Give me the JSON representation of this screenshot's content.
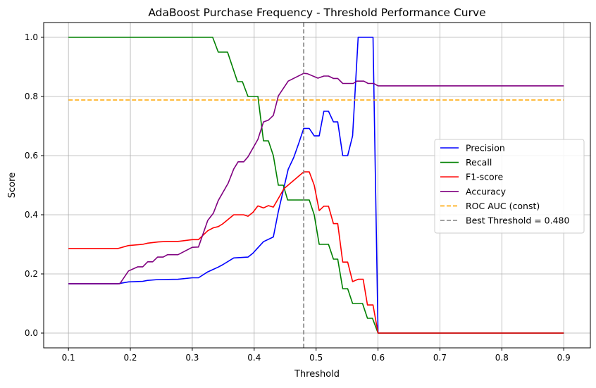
{
  "chart_data": {
    "type": "line",
    "title": "AdaBoost Purchase Frequency - Threshold Performance Curve",
    "xlabel": "Threshold",
    "ylabel": "Score",
    "xlim": [
      0.06,
      0.943
    ],
    "ylim": [
      -0.05,
      1.05
    ],
    "xticks": [
      0.1,
      0.2,
      0.3,
      0.4,
      0.5,
      0.6,
      0.7,
      0.8,
      0.9
    ],
    "xtick_labels": [
      "0.1",
      "0.2",
      "0.3",
      "0.4",
      "0.5",
      "0.6",
      "0.7",
      "0.8",
      "0.9"
    ],
    "yticks": [
      0,
      0.2,
      0.4,
      0.6,
      0.8,
      1.0
    ],
    "ytick_labels": [
      "0.0",
      "0.2",
      "0.4",
      "0.6",
      "0.8",
      "1.0"
    ],
    "grid": true,
    "legend_position": "center-right",
    "series": [
      {
        "name": "Precision",
        "color": "#0000ff",
        "style": "solid",
        "x": [
          0.1,
          0.18,
          0.197,
          0.22,
          0.228,
          0.245,
          0.277,
          0.3,
          0.31,
          0.325,
          0.342,
          0.349,
          0.367,
          0.39,
          0.398,
          0.415,
          0.431,
          0.439,
          0.455,
          0.464,
          0.472,
          0.48,
          0.489,
          0.497,
          0.505,
          0.5125,
          0.52,
          0.528,
          0.535,
          0.543,
          0.551,
          0.559,
          0.568,
          0.592,
          0.6,
          0.9
        ],
        "y": [
          0.167,
          0.167,
          0.173,
          0.175,
          0.178,
          0.181,
          0.182,
          0.187,
          0.187,
          0.207,
          0.223,
          0.231,
          0.254,
          0.257,
          0.27,
          0.309,
          0.325,
          0.411,
          0.554,
          0.594,
          0.642,
          0.692,
          0.692,
          0.667,
          0.667,
          0.75,
          0.75,
          0.714,
          0.714,
          0.6,
          0.6,
          0.667,
          1.0,
          1.0,
          0.0,
          0.0
        ]
      },
      {
        "name": "Recall",
        "color": "#008000",
        "style": "solid",
        "x": [
          0.1,
          0.333,
          0.342,
          0.357,
          0.373,
          0.381,
          0.39,
          0.406,
          0.415,
          0.423,
          0.431,
          0.439,
          0.447,
          0.454,
          0.489,
          0.497,
          0.505,
          0.52,
          0.528,
          0.535,
          0.543,
          0.551,
          0.559,
          0.575,
          0.583,
          0.591,
          0.6,
          0.9
        ],
        "y": [
          1.0,
          1.0,
          0.95,
          0.95,
          0.85,
          0.85,
          0.8,
          0.8,
          0.65,
          0.65,
          0.6,
          0.5,
          0.5,
          0.45,
          0.45,
          0.4,
          0.3,
          0.3,
          0.25,
          0.25,
          0.15,
          0.15,
          0.1,
          0.1,
          0.05,
          0.05,
          0.0,
          0.0
        ]
      },
      {
        "name": "F1-score",
        "color": "#ff0000",
        "style": "solid",
        "x": [
          0.1,
          0.18,
          0.197,
          0.22,
          0.228,
          0.245,
          0.26,
          0.277,
          0.3,
          0.31,
          0.325,
          0.334,
          0.342,
          0.349,
          0.367,
          0.383,
          0.39,
          0.398,
          0.406,
          0.415,
          0.423,
          0.431,
          0.439,
          0.448,
          0.48,
          0.489,
          0.497,
          0.505,
          0.5125,
          0.52,
          0.528,
          0.535,
          0.543,
          0.551,
          0.559,
          0.568,
          0.576,
          0.583,
          0.592,
          0.6,
          0.9
        ],
        "y": [
          0.286,
          0.286,
          0.296,
          0.3,
          0.304,
          0.308,
          0.31,
          0.31,
          0.316,
          0.316,
          0.346,
          0.356,
          0.36,
          0.369,
          0.4,
          0.4,
          0.395,
          0.408,
          0.43,
          0.423,
          0.431,
          0.426,
          0.455,
          0.488,
          0.545,
          0.545,
          0.5,
          0.414,
          0.429,
          0.429,
          0.37,
          0.37,
          0.24,
          0.24,
          0.174,
          0.182,
          0.182,
          0.095,
          0.095,
          0.0,
          0.0
        ]
      },
      {
        "name": "Accuracy",
        "color": "#800080",
        "style": "solid",
        "x": [
          0.1,
          0.183,
          0.197,
          0.212,
          0.22,
          0.228,
          0.236,
          0.244,
          0.253,
          0.26,
          0.277,
          0.3,
          0.31,
          0.325,
          0.334,
          0.342,
          0.358,
          0.367,
          0.374,
          0.383,
          0.39,
          0.406,
          0.415,
          0.423,
          0.431,
          0.439,
          0.455,
          0.48,
          0.486,
          0.503,
          0.5125,
          0.52,
          0.528,
          0.535,
          0.543,
          0.56,
          0.566,
          0.577,
          0.584,
          0.593,
          0.6,
          0.9
        ],
        "y": [
          0.167,
          0.167,
          0.21,
          0.224,
          0.224,
          0.241,
          0.241,
          0.257,
          0.257,
          0.265,
          0.265,
          0.29,
          0.291,
          0.381,
          0.405,
          0.448,
          0.507,
          0.555,
          0.579,
          0.579,
          0.596,
          0.655,
          0.714,
          0.72,
          0.736,
          0.802,
          0.852,
          0.878,
          0.877,
          0.862,
          0.869,
          0.869,
          0.861,
          0.861,
          0.844,
          0.844,
          0.852,
          0.852,
          0.844,
          0.844,
          0.836,
          0.836
        ]
      },
      {
        "name": "ROC AUC (const)",
        "color": "#ffa500",
        "style": "dashed",
        "x": [
          0.1,
          0.9
        ],
        "y": [
          0.788,
          0.788
        ]
      },
      {
        "name": "Best Threshold = 0.480",
        "color": "#808080",
        "style": "dashed-vertical",
        "x": [
          0.48,
          0.48
        ],
        "y": [
          -0.05,
          1.05
        ]
      }
    ]
  }
}
